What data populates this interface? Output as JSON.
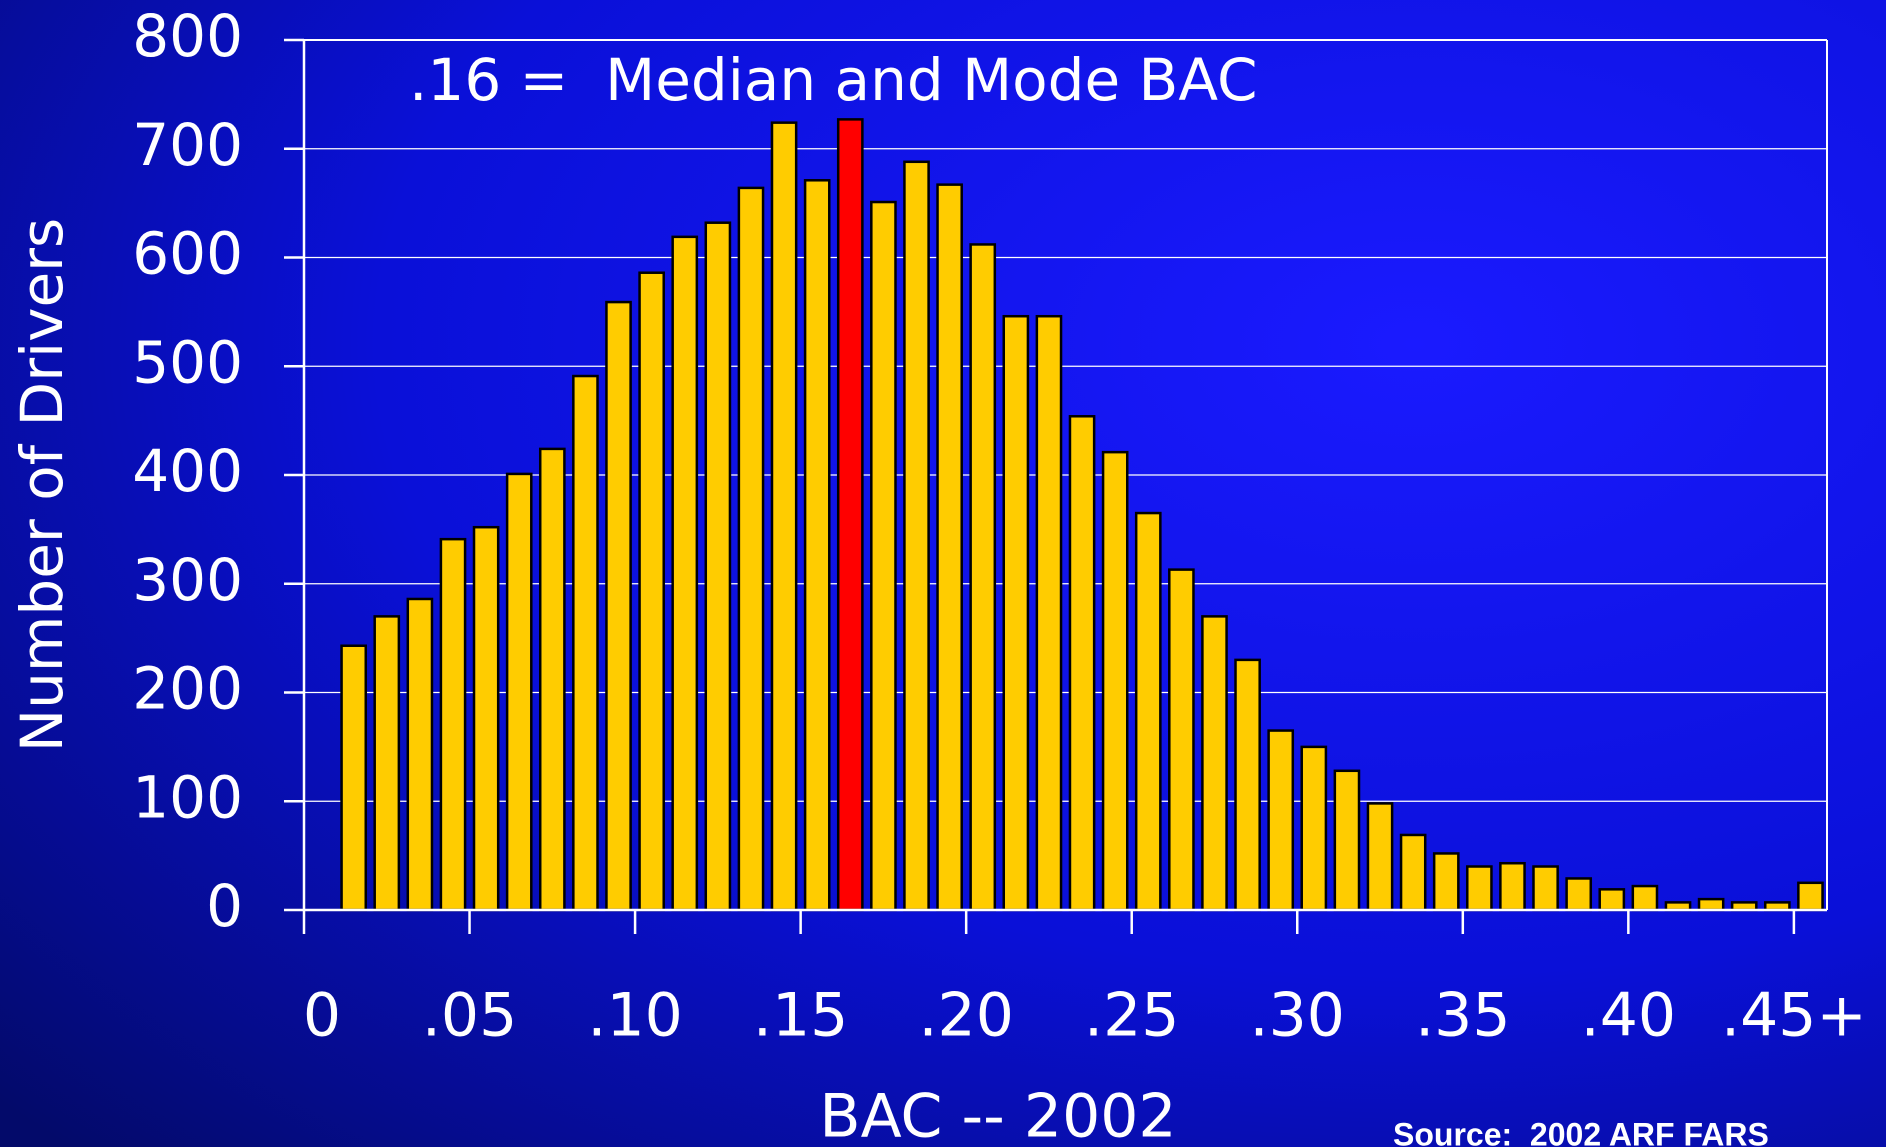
{
  "chart_data": {
    "type": "bar",
    "annotation": ".16 =  Median and Mode BAC",
    "xlabel": "BAC -- 2002",
    "ylabel": "Number of Drivers",
    "source": "Source:  2002 ARF FARS",
    "x": [
      0.01,
      0.02,
      0.03,
      0.04,
      0.05,
      0.06,
      0.07,
      0.08,
      0.09,
      0.1,
      0.11,
      0.12,
      0.13,
      0.14,
      0.15,
      0.16,
      0.17,
      0.18,
      0.19,
      0.2,
      0.21,
      0.22,
      0.23,
      0.24,
      0.25,
      0.26,
      0.27,
      0.28,
      0.29,
      0.3,
      0.31,
      0.32,
      0.33,
      0.34,
      0.35,
      0.36,
      0.37,
      0.38,
      0.39,
      0.4,
      0.41,
      0.42,
      0.43,
      0.44,
      0.45
    ],
    "values": [
      243,
      270,
      286,
      341,
      352,
      401,
      424,
      491,
      559,
      586,
      619,
      632,
      664,
      724,
      671,
      727,
      651,
      688,
      667,
      612,
      546,
      546,
      454,
      421,
      365,
      313,
      270,
      230,
      165,
      150,
      128,
      98,
      69,
      52,
      40,
      43,
      40,
      29,
      19,
      22,
      7,
      10,
      7,
      7,
      25
    ],
    "color": "#ffcc00",
    "highlight": {
      "x": 0.16,
      "color": "#ff0000"
    },
    "xlim": [
      0,
      0.46
    ],
    "xticks": [
      0,
      {
        "value": 0.05,
        "label": ".05"
      },
      {
        "value": 0.1,
        "label": ".10"
      },
      {
        "value": 0.15,
        "label": ".15"
      },
      {
        "value": 0.2,
        "label": ".20"
      },
      {
        "value": 0.25,
        "label": ".25"
      },
      {
        "value": 0.3,
        "label": ".30"
      },
      {
        "value": 0.35,
        "label": ".35"
      },
      {
        "value": 0.4,
        "label": ".40"
      },
      {
        "value": 0.45,
        "label": ".45+"
      }
    ],
    "ylim": [
      0,
      800
    ],
    "yticks": [
      0,
      100,
      200,
      300,
      400,
      500,
      600,
      700,
      800
    ],
    "grid": true
  }
}
